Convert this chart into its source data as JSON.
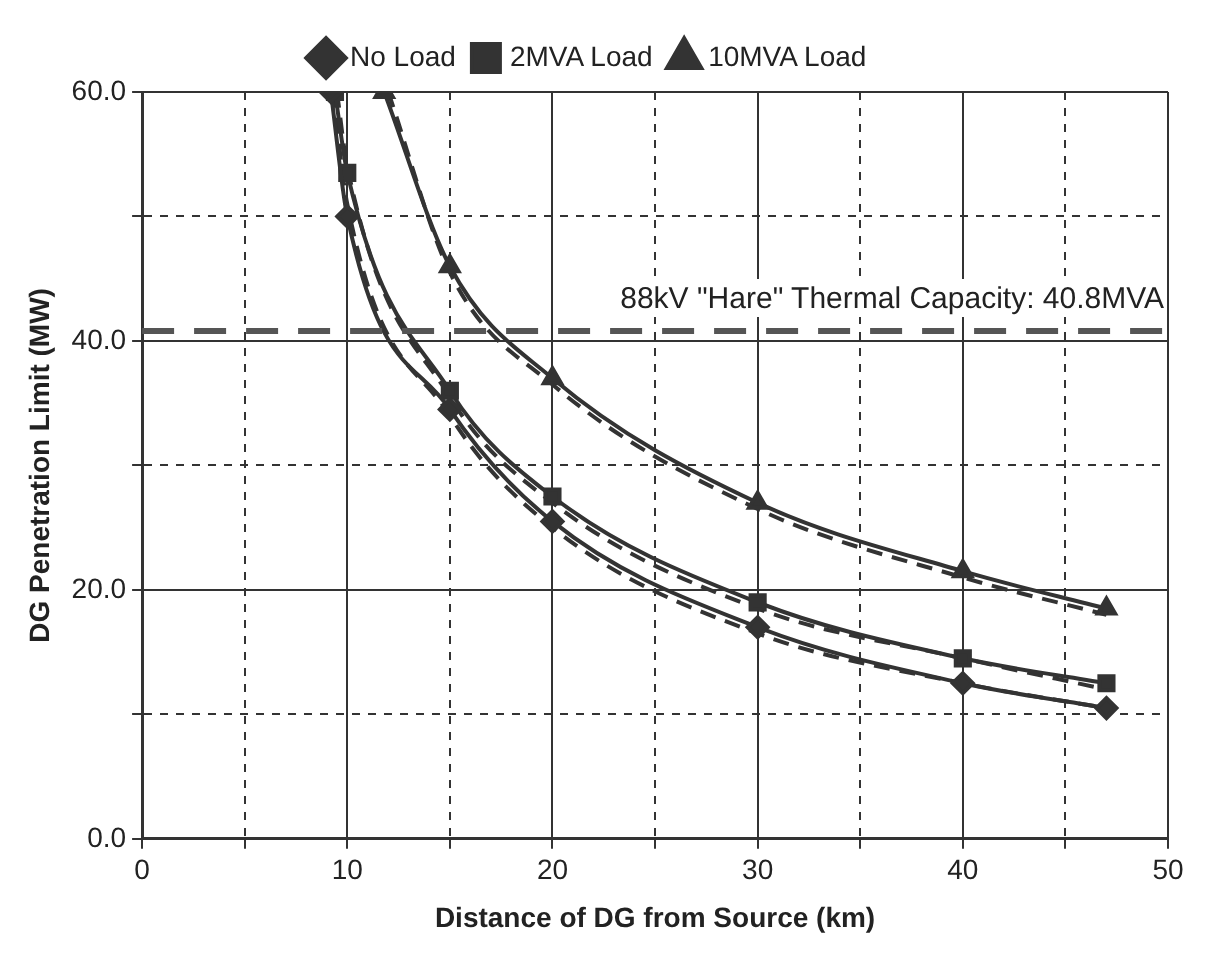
{
  "chart_data": {
    "type": "line",
    "xlabel": "Distance of DG from Source (km)",
    "ylabel": "DG Penetration Limit (MW)",
    "xlim": [
      0,
      50
    ],
    "xticks": [
      0,
      {
        "value": 5,
        "label": null
      },
      10,
      {
        "value": 15,
        "label": null
      },
      20,
      {
        "value": 25,
        "label": null
      },
      30,
      {
        "value": 35,
        "label": null
      },
      40,
      {
        "value": 45,
        "label": null
      },
      50
    ],
    "ylim": [
      0,
      60
    ],
    "yticks": [
      {
        "value": 0,
        "label": "0.0"
      },
      {
        "value": 10,
        "label": null
      },
      {
        "value": 20,
        "label": "20.0"
      },
      {
        "value": 30,
        "label": null
      },
      {
        "value": 40,
        "label": "40.0"
      },
      {
        "value": 50,
        "label": null
      },
      {
        "value": 60,
        "label": "60.0"
      }
    ],
    "grid": true,
    "legend": "top",
    "line_style": "solid",
    "series": [
      {
        "name": "No Load",
        "color": "#333333",
        "marker": "diamond",
        "x": [
          9.2,
          10,
          15,
          20,
          30,
          40,
          47
        ],
        "values": [
          60,
          50,
          34.5,
          25.5,
          17,
          12.5,
          10.5
        ]
      },
      {
        "name": "2MVA Load",
        "color": "#333333",
        "marker": "square",
        "x": [
          9.4,
          10,
          15,
          20,
          30,
          40,
          47
        ],
        "values": [
          60,
          53.5,
          36,
          27.5,
          19,
          14.5,
          12.5
        ]
      },
      {
        "name": "10MVA Load",
        "color": "#333333",
        "marker": "triangle",
        "x": [
          11.8,
          15,
          20,
          30,
          40,
          47
        ],
        "values": [
          60,
          46,
          37,
          27,
          21.5,
          18.5
        ]
      },
      {
        "color": "#333333",
        "marker": "none",
        "line_style": "dashed",
        "x": [
          9.3,
          10,
          15,
          20,
          30,
          40,
          47
        ],
        "values": [
          60,
          51,
          34,
          25,
          16.5,
          12.5,
          10.5
        ]
      },
      {
        "color": "#333333",
        "marker": "none",
        "line_style": "dashed",
        "x": [
          9.5,
          10,
          15,
          20,
          30,
          40,
          47
        ],
        "values": [
          60,
          54,
          35.5,
          27,
          18.5,
          14.5,
          12
        ]
      },
      {
        "color": "#333333",
        "marker": "none",
        "line_style": "dashed",
        "x": [
          12,
          15,
          20,
          30,
          40,
          47
        ],
        "values": [
          60,
          45.5,
          36.5,
          26.5,
          21,
          18
        ]
      }
    ],
    "ref_lines": [
      {
        "axis": "y",
        "value": 40.8,
        "label": "88kV \"Hare\" Thermal Capacity: 40.8MVA",
        "color": "#555555",
        "line_style": "dashed"
      }
    ]
  }
}
